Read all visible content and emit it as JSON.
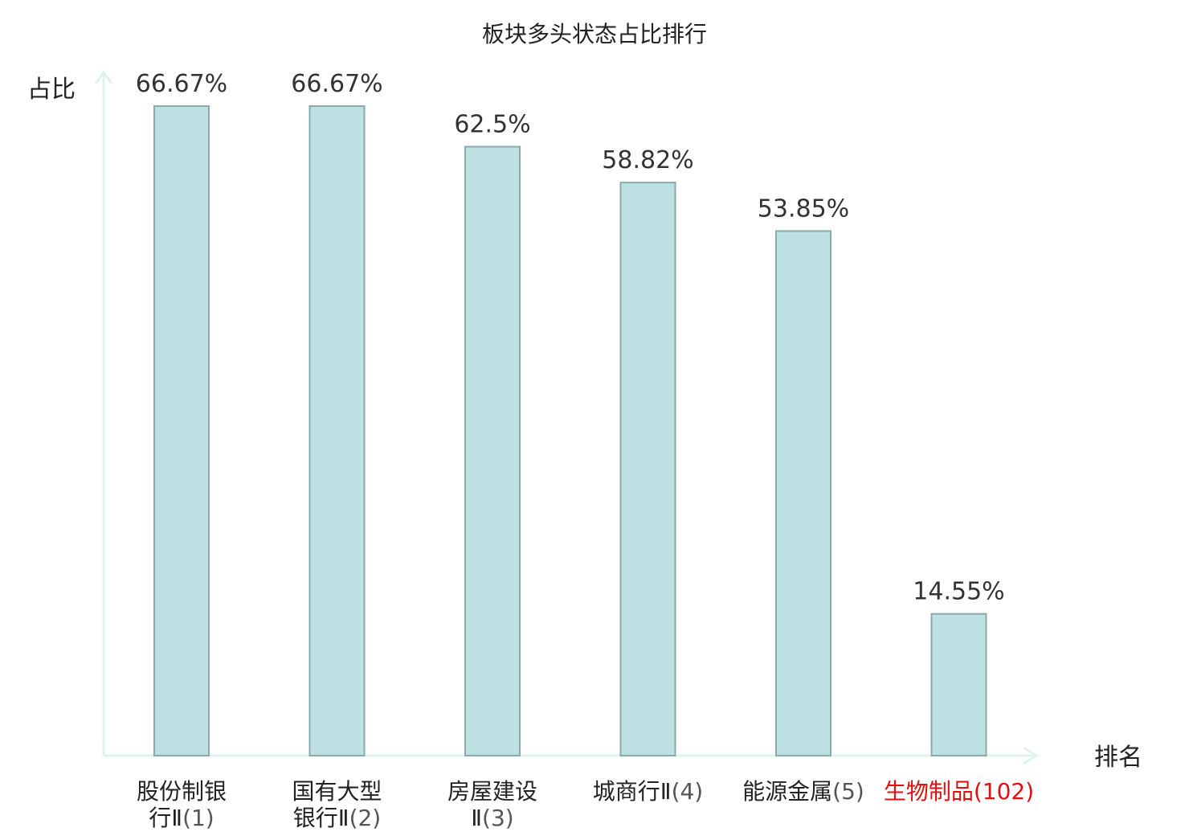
{
  "chart_data": {
    "type": "bar",
    "title": "板块多头状态占比排行",
    "ylabel": "占比",
    "xlabel": "排名",
    "ylim": [
      0,
      70
    ],
    "grid": false,
    "value_suffix": "%",
    "categories": [
      {
        "lines": [
          "股份制银",
          "行Ⅱ"
        ],
        "rank": "(1)",
        "highlight": false
      },
      {
        "lines": [
          "国有大型",
          "银行Ⅱ"
        ],
        "rank": "(2)",
        "highlight": false
      },
      {
        "lines": [
          "房屋建设",
          "Ⅱ"
        ],
        "rank": "(3)",
        "highlight": false
      },
      {
        "lines": [
          "城商行Ⅱ"
        ],
        "rank": "(4)",
        "highlight": false
      },
      {
        "lines": [
          "能源金属"
        ],
        "rank": "(5)",
        "highlight": false
      },
      {
        "lines": [
          "生物制品"
        ],
        "rank": "(102)",
        "highlight": true
      }
    ],
    "values": [
      66.67,
      66.67,
      62.5,
      58.82,
      53.85,
      14.55
    ],
    "value_labels": [
      "66.67%",
      "66.67%",
      "62.5%",
      "58.82%",
      "53.85%",
      "14.55%"
    ],
    "colors": {
      "bar_fill": "#bde1e3",
      "bar_stroke": "#8aa9aa",
      "axis": "#dff2ee",
      "highlight": "#e01010"
    }
  }
}
